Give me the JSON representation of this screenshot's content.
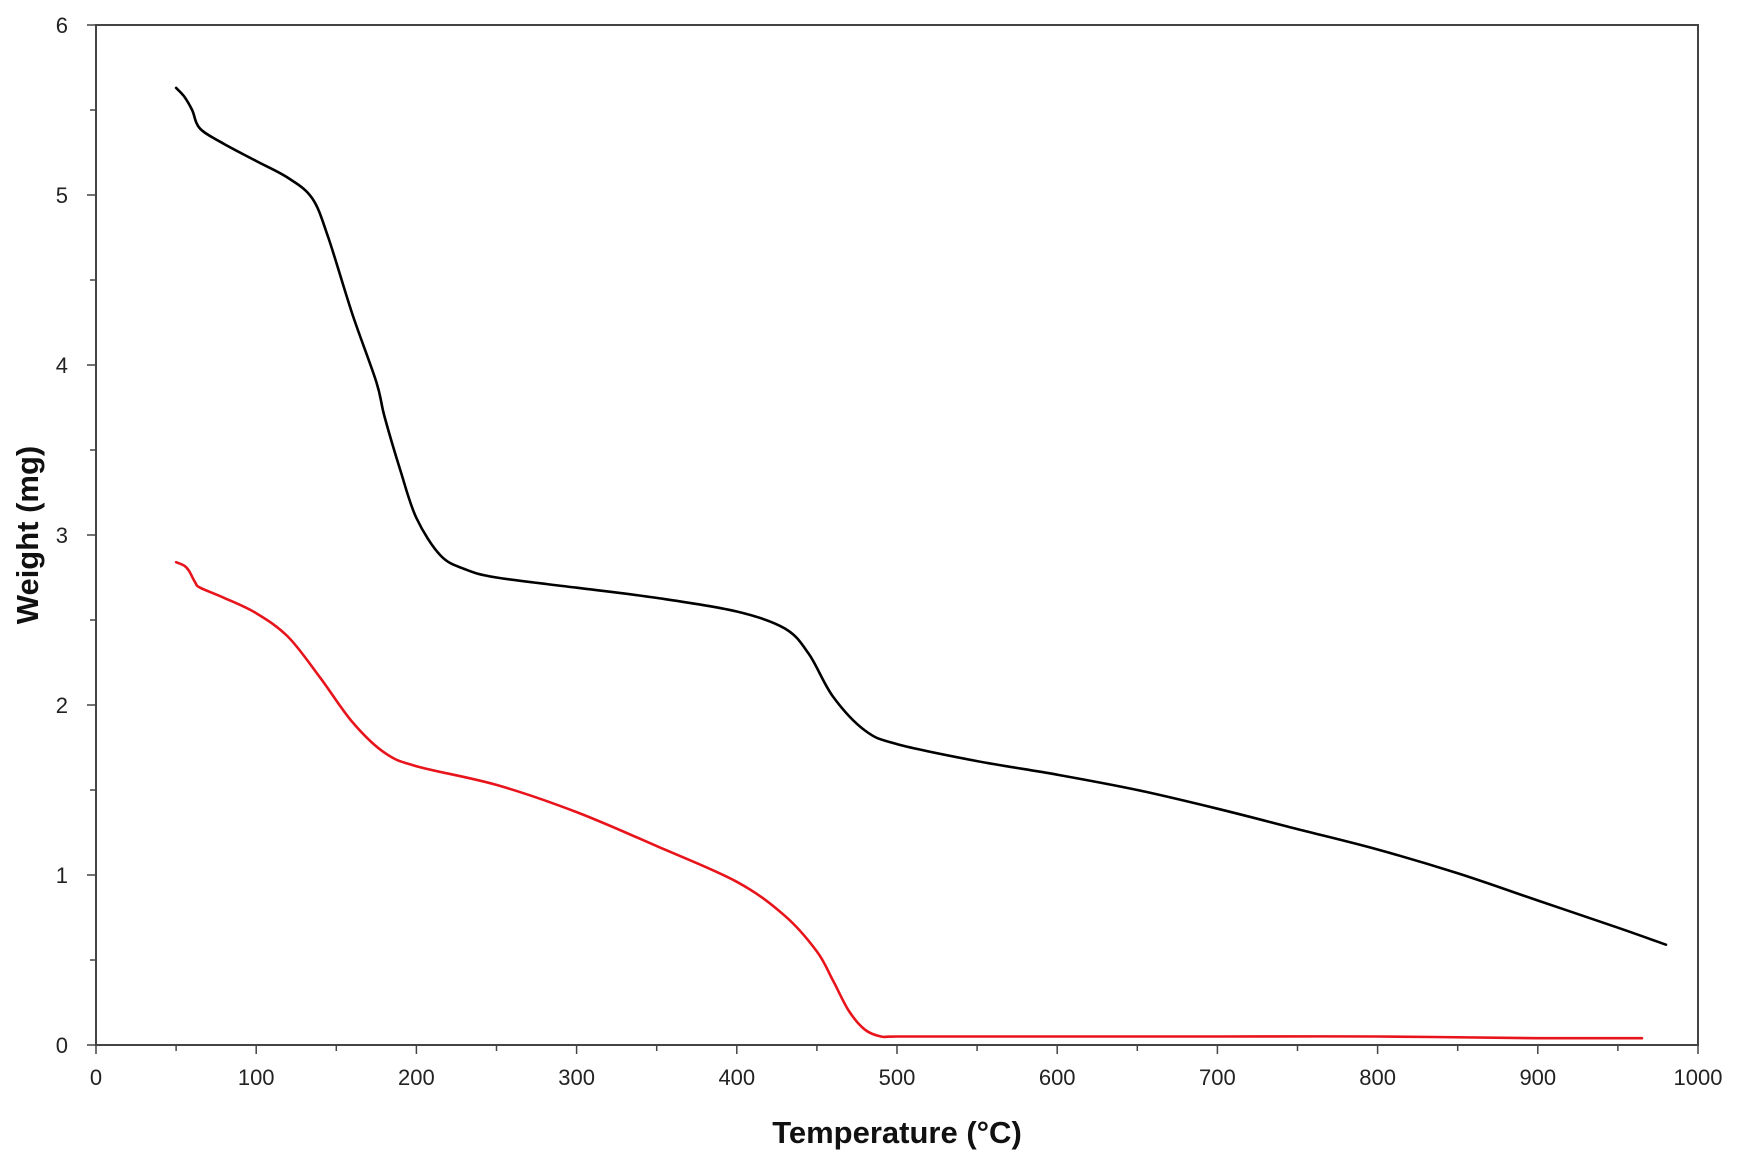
{
  "chart_data": {
    "type": "line",
    "title": "",
    "xlabel": "Temperature (°C)",
    "ylabel": "Weight (mg)",
    "xlim": [
      0,
      1000
    ],
    "ylim": [
      0,
      6
    ],
    "x_ticks": [
      "0",
      "100",
      "200",
      "300",
      "400",
      "500",
      "600",
      "700",
      "800",
      "900",
      "1000"
    ],
    "y_ticks": [
      "0",
      "1",
      "2",
      "3",
      "4",
      "5",
      "6"
    ],
    "grid": false,
    "legend": "none",
    "series": [
      {
        "color": "#000000",
        "x": [
          50,
          55,
          60,
          65,
          80,
          100,
          120,
          135,
          145,
          160,
          175,
          180,
          190,
          200,
          215,
          230,
          250,
          300,
          350,
          400,
          430,
          445,
          460,
          480,
          500,
          550,
          600,
          650,
          700,
          750,
          800,
          850,
          900,
          950,
          980
        ],
        "y": [
          5.63,
          5.58,
          5.5,
          5.39,
          5.3,
          5.2,
          5.1,
          4.98,
          4.75,
          4.3,
          3.9,
          3.7,
          3.38,
          3.1,
          2.88,
          2.8,
          2.75,
          2.69,
          2.63,
          2.55,
          2.45,
          2.3,
          2.05,
          1.85,
          1.77,
          1.67,
          1.59,
          1.5,
          1.39,
          1.27,
          1.15,
          1.01,
          0.85,
          0.69,
          0.59
        ]
      },
      {
        "color": "#e8141c",
        "x": [
          50,
          55,
          58,
          62,
          65,
          80,
          100,
          120,
          140,
          160,
          180,
          200,
          250,
          300,
          350,
          400,
          430,
          450,
          460,
          470,
          480,
          490,
          500,
          550,
          600,
          700,
          800,
          900,
          965
        ],
        "y": [
          2.84,
          2.82,
          2.79,
          2.72,
          2.69,
          2.63,
          2.54,
          2.4,
          2.16,
          1.9,
          1.72,
          1.64,
          1.53,
          1.37,
          1.17,
          0.96,
          0.76,
          0.55,
          0.38,
          0.2,
          0.09,
          0.05,
          0.05,
          0.05,
          0.05,
          0.05,
          0.05,
          0.04,
          0.04
        ]
      }
    ]
  }
}
